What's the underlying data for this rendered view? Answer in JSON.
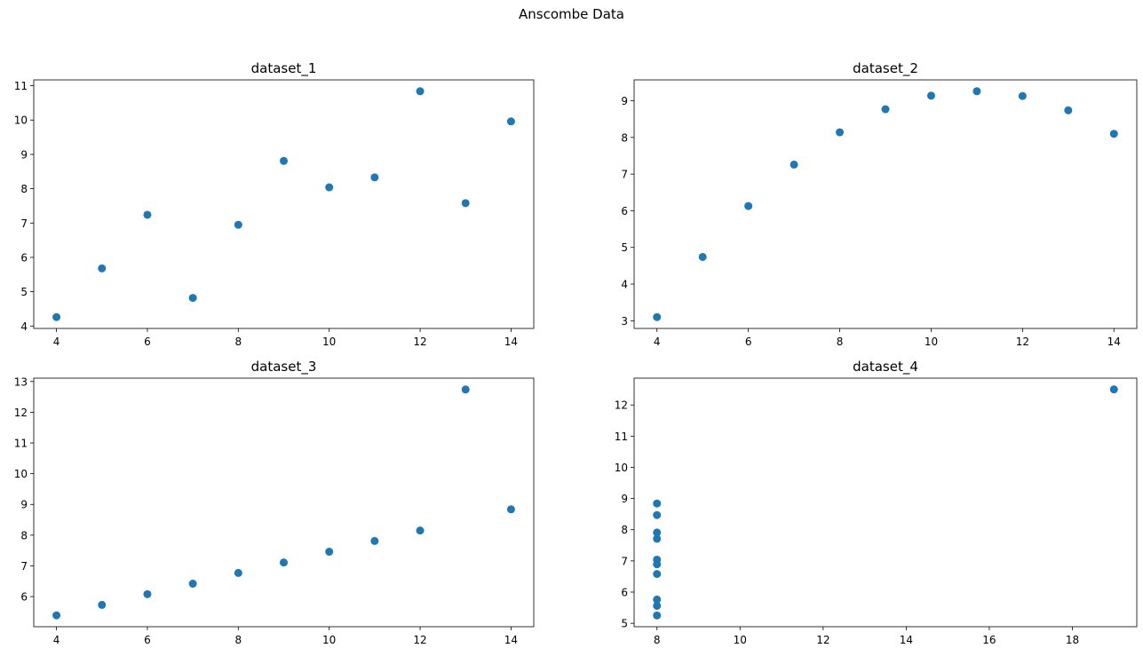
{
  "suptitle": "Anscombe Data",
  "colors": {
    "marker": "#1f77b4",
    "axes": "#000000",
    "background": "#ffffff"
  },
  "chart_data": [
    {
      "type": "scatter",
      "title": "dataset_1",
      "xlabel": "",
      "ylabel": "",
      "x": [
        10,
        8,
        13,
        9,
        11,
        14,
        6,
        4,
        12,
        7,
        5
      ],
      "y": [
        8.04,
        6.95,
        7.58,
        8.81,
        8.33,
        9.96,
        7.24,
        4.26,
        10.84,
        4.82,
        5.68
      ],
      "xlim": [
        3.5,
        14.5
      ],
      "ylim": [
        3.93,
        11.17
      ],
      "xticks": [
        4,
        6,
        8,
        10,
        12,
        14
      ],
      "yticks": [
        4,
        5,
        6,
        7,
        8,
        9,
        10,
        11
      ],
      "grid": false
    },
    {
      "type": "scatter",
      "title": "dataset_2",
      "xlabel": "",
      "ylabel": "",
      "x": [
        10,
        8,
        13,
        9,
        11,
        14,
        6,
        4,
        12,
        7,
        5
      ],
      "y": [
        9.14,
        8.14,
        8.74,
        8.77,
        9.26,
        8.1,
        6.13,
        3.1,
        9.13,
        7.26,
        4.74
      ],
      "xlim": [
        3.5,
        14.5
      ],
      "ylim": [
        2.79,
        9.57
      ],
      "xticks": [
        4,
        6,
        8,
        10,
        12,
        14
      ],
      "yticks": [
        3,
        4,
        5,
        6,
        7,
        8,
        9
      ],
      "grid": false
    },
    {
      "type": "scatter",
      "title": "dataset_3",
      "xlabel": "",
      "ylabel": "",
      "x": [
        10,
        8,
        13,
        9,
        11,
        14,
        6,
        4,
        12,
        7,
        5
      ],
      "y": [
        7.46,
        6.77,
        12.74,
        7.11,
        7.81,
        8.84,
        6.08,
        5.39,
        8.15,
        6.42,
        5.73
      ],
      "xlim": [
        3.5,
        14.5
      ],
      "ylim": [
        5.02,
        13.11
      ],
      "xticks": [
        4,
        6,
        8,
        10,
        12,
        14
      ],
      "yticks": [
        6,
        7,
        8,
        9,
        10,
        11,
        12,
        13
      ],
      "grid": false
    },
    {
      "type": "scatter",
      "title": "dataset_4",
      "xlabel": "",
      "ylabel": "",
      "x": [
        8,
        8,
        8,
        8,
        8,
        8,
        8,
        19,
        8,
        8,
        8
      ],
      "y": [
        6.58,
        5.76,
        7.71,
        8.84,
        8.47,
        7.04,
        5.25,
        12.5,
        5.56,
        7.91,
        6.89
      ],
      "xlim": [
        7.45,
        19.55
      ],
      "ylim": [
        4.89,
        12.86
      ],
      "xticks": [
        8,
        10,
        12,
        14,
        16,
        18
      ],
      "yticks": [
        5,
        6,
        7,
        8,
        9,
        10,
        11,
        12
      ],
      "grid": false
    }
  ]
}
